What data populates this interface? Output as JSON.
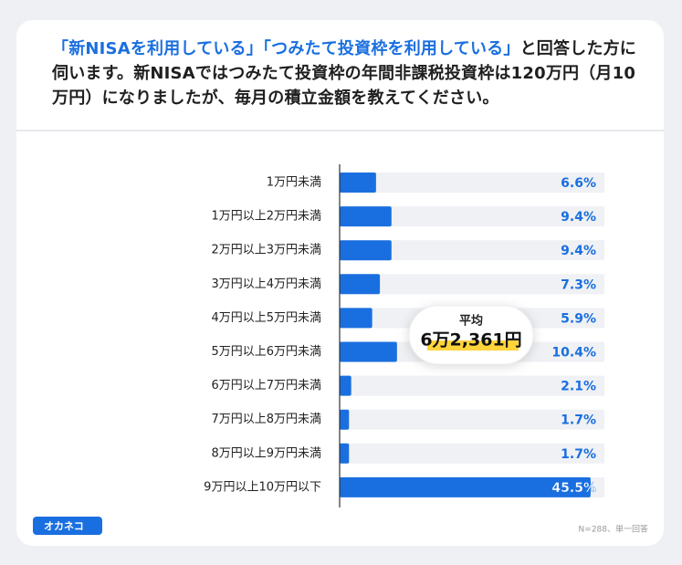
{
  "chart_data": {
    "type": "bar",
    "orientation": "horizontal",
    "title": [
      "「新NISAを利用している」「つみたて投資枠を利用している」",
      "と回答した方に伺います。新NISAではつみたて投資枠の年間非課税投資枠は120万円（月10万円）になりましたが、毎月の積立金額を教えてください。"
    ],
    "title_colors": [
      "#1a6fe0",
      "#1f1f1f"
    ],
    "categories": [
      "1万円未満",
      "1万円以上2万円未満",
      "2万円以上3万円未満",
      "3万円以上4万円未満",
      "4万円以上5万円未満",
      "5万円以上6万円未満",
      "6万円以上7万円未満",
      "7万円以上8万円未満",
      "8万円以上9万円未満",
      "9万円以上10万円以下"
    ],
    "values": [
      6.6,
      9.4,
      9.4,
      7.3,
      5.9,
      10.4,
      2.1,
      1.7,
      1.7,
      45.5
    ],
    "value_labels": [
      "6.6%",
      "9.4%",
      "9.4%",
      "7.3%",
      "5.9%",
      "10.4%",
      "2.1%",
      "1.7%",
      "1.7%",
      "45.5%"
    ],
    "color": "#1a6fe0",
    "track_color": "#eff1f4",
    "xlim": [
      0,
      48
    ],
    "average_label": "平均",
    "average_value": "6万2,361円",
    "note": "N=288、単一回答",
    "logo": "オカネコ"
  }
}
